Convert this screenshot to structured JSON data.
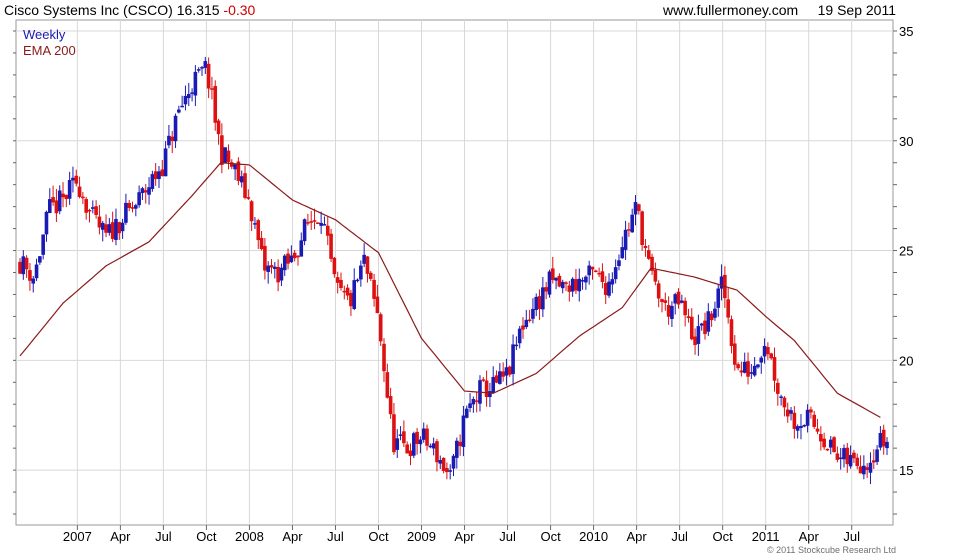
{
  "header": {
    "title": "Cisco Systems Inc (CSCO)",
    "price": "16.315",
    "change": "-0.30",
    "site": "www.fullermoney.com",
    "date": "19 Sep 2011"
  },
  "legend": {
    "series1": "Weekly",
    "series2": "EMA 200"
  },
  "footer": {
    "copyright": "© 2011 Stockcube Research Ltd"
  },
  "colors": {
    "up": "#1a1ab4",
    "down": "#dd1111",
    "ema": "#8b1a1a",
    "grid": "#d8d8d8"
  },
  "chart_data": {
    "type": "candlestick",
    "title": "Cisco Systems Inc (CSCO)",
    "period": "Weekly",
    "ylim": [
      12.5,
      35.5
    ],
    "y_ticks": [
      15,
      20,
      25,
      30,
      35
    ],
    "x_ticks": [
      "2007",
      "Apr",
      "Jul",
      "Oct",
      "2008",
      "Apr",
      "Jul",
      "Oct",
      "2009",
      "Apr",
      "Jul",
      "Oct",
      "2010",
      "Apr",
      "Jul",
      "Oct",
      "2011",
      "Apr",
      "Jul"
    ],
    "x_range": [
      "2006-09",
      "2011-09"
    ],
    "grid": true,
    "price_anchors": [
      {
        "date": "2006-09",
        "close": 24.5
      },
      {
        "date": "2006-10",
        "close": 23.8
      },
      {
        "date": "2006-11",
        "close": 26.8
      },
      {
        "date": "2006-12",
        "close": 27.3
      },
      {
        "date": "2007-01",
        "close": 28.2
      },
      {
        "date": "2007-02",
        "close": 26.5
      },
      {
        "date": "2007-03",
        "close": 25.6
      },
      {
        "date": "2007-04",
        "close": 26.4
      },
      {
        "date": "2007-05",
        "close": 27.0
      },
      {
        "date": "2007-06",
        "close": 28.0
      },
      {
        "date": "2007-07",
        "close": 29.0
      },
      {
        "date": "2007-08",
        "close": 31.2
      },
      {
        "date": "2007-09",
        "close": 32.6
      },
      {
        "date": "2007-10",
        "close": 33.3
      },
      {
        "date": "2007-11",
        "close": 29.5
      },
      {
        "date": "2007-12",
        "close": 28.6
      },
      {
        "date": "2008-01",
        "close": 27.2
      },
      {
        "date": "2008-02",
        "close": 24.2
      },
      {
        "date": "2008-03",
        "close": 24.0
      },
      {
        "date": "2008-04",
        "close": 24.6
      },
      {
        "date": "2008-05",
        "close": 26.2
      },
      {
        "date": "2008-06",
        "close": 26.8
      },
      {
        "date": "2008-07",
        "close": 23.2
      },
      {
        "date": "2008-08",
        "close": 22.6
      },
      {
        "date": "2008-09",
        "close": 24.5
      },
      {
        "date": "2008-10",
        "close": 21.8
      },
      {
        "date": "2008-11",
        "close": 16.3
      },
      {
        "date": "2008-12",
        "close": 16.0
      },
      {
        "date": "2009-01",
        "close": 16.5
      },
      {
        "date": "2009-02",
        "close": 15.8
      },
      {
        "date": "2009-03",
        "close": 14.6
      },
      {
        "date": "2009-04",
        "close": 17.4
      },
      {
        "date": "2009-05",
        "close": 18.6
      },
      {
        "date": "2009-06",
        "close": 18.8
      },
      {
        "date": "2009-07",
        "close": 19.3
      },
      {
        "date": "2009-08",
        "close": 21.6
      },
      {
        "date": "2009-09",
        "close": 22.6
      },
      {
        "date": "2009-10",
        "close": 23.6
      },
      {
        "date": "2009-11",
        "close": 23.3
      },
      {
        "date": "2009-12",
        "close": 23.6
      },
      {
        "date": "2010-01",
        "close": 23.9
      },
      {
        "date": "2010-02",
        "close": 23.4
      },
      {
        "date": "2010-03",
        "close": 25.4
      },
      {
        "date": "2010-04",
        "close": 27.0
      },
      {
        "date": "2010-05",
        "close": 23.8
      },
      {
        "date": "2010-06",
        "close": 22.3
      },
      {
        "date": "2010-07",
        "close": 22.6
      },
      {
        "date": "2010-08",
        "close": 21.0
      },
      {
        "date": "2010-09",
        "close": 21.7
      },
      {
        "date": "2010-10",
        "close": 23.5
      },
      {
        "date": "2010-11",
        "close": 19.5
      },
      {
        "date": "2010-12",
        "close": 19.6
      },
      {
        "date": "2011-01",
        "close": 21.0
      },
      {
        "date": "2011-02",
        "close": 18.4
      },
      {
        "date": "2011-03",
        "close": 17.3
      },
      {
        "date": "2011-04",
        "close": 17.3
      },
      {
        "date": "2011-05",
        "close": 16.6
      },
      {
        "date": "2011-06",
        "close": 15.5
      },
      {
        "date": "2011-07",
        "close": 15.4
      },
      {
        "date": "2011-08",
        "close": 15.4
      },
      {
        "date": "2011-09",
        "close": 16.3
      }
    ],
    "ema200": [
      {
        "date": "2006-09",
        "value": 20.2
      },
      {
        "date": "2006-12",
        "value": 22.6
      },
      {
        "date": "2007-03",
        "value": 24.3
      },
      {
        "date": "2007-06",
        "value": 25.4
      },
      {
        "date": "2007-09",
        "value": 27.5
      },
      {
        "date": "2007-11",
        "value": 29.0
      },
      {
        "date": "2008-01",
        "value": 28.9
      },
      {
        "date": "2008-04",
        "value": 27.3
      },
      {
        "date": "2008-07",
        "value": 26.4
      },
      {
        "date": "2008-10",
        "value": 24.9
      },
      {
        "date": "2009-01",
        "value": 21.0
      },
      {
        "date": "2009-04",
        "value": 18.6
      },
      {
        "date": "2009-06",
        "value": 18.5
      },
      {
        "date": "2009-09",
        "value": 19.4
      },
      {
        "date": "2009-12",
        "value": 21.1
      },
      {
        "date": "2010-03",
        "value": 22.4
      },
      {
        "date": "2010-05",
        "value": 24.2
      },
      {
        "date": "2010-08",
        "value": 23.8
      },
      {
        "date": "2010-11",
        "value": 23.2
      },
      {
        "date": "2011-01",
        "value": 22.0
      },
      {
        "date": "2011-03",
        "value": 20.9
      },
      {
        "date": "2011-06",
        "value": 18.5
      },
      {
        "date": "2011-09",
        "value": 17.4
      }
    ]
  }
}
